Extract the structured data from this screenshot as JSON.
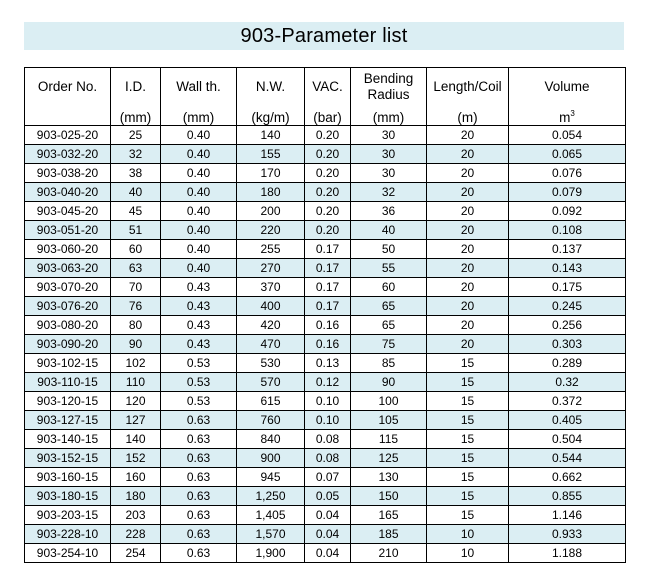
{
  "title": "903-Parameter list",
  "headers": {
    "order_no": "Order No.",
    "id": "I.D.",
    "wall": "Wall th.",
    "nw": "N.W.",
    "vac": "VAC.",
    "bending_1": "Bending",
    "bending_2": "Radius",
    "length": "Length/Coil",
    "volume": "Volume"
  },
  "units": {
    "order_no": "",
    "id": "(mm)",
    "wall": "(mm)",
    "nw": "(kg/m)",
    "vac": "(bar)",
    "bending": "(mm)",
    "length": "(m)",
    "volume_base": "m",
    "volume_exp": "3"
  },
  "rows": [
    [
      "903-025-20",
      "25",
      "0.40",
      "140",
      "0.20",
      "30",
      "20",
      "0.054"
    ],
    [
      "903-032-20",
      "32",
      "0.40",
      "155",
      "0.20",
      "30",
      "20",
      "0.065"
    ],
    [
      "903-038-20",
      "38",
      "0.40",
      "170",
      "0.20",
      "30",
      "20",
      "0.076"
    ],
    [
      "903-040-20",
      "40",
      "0.40",
      "180",
      "0.20",
      "32",
      "20",
      "0.079"
    ],
    [
      "903-045-20",
      "45",
      "0.40",
      "200",
      "0.20",
      "36",
      "20",
      "0.092"
    ],
    [
      "903-051-20",
      "51",
      "0.40",
      "220",
      "0.20",
      "40",
      "20",
      "0.108"
    ],
    [
      "903-060-20",
      "60",
      "0.40",
      "255",
      "0.17",
      "50",
      "20",
      "0.137"
    ],
    [
      "903-063-20",
      "63",
      "0.40",
      "270",
      "0.17",
      "55",
      "20",
      "0.143"
    ],
    [
      "903-070-20",
      "70",
      "0.43",
      "370",
      "0.17",
      "60",
      "20",
      "0.175"
    ],
    [
      "903-076-20",
      "76",
      "0.43",
      "400",
      "0.17",
      "65",
      "20",
      "0.245"
    ],
    [
      "903-080-20",
      "80",
      "0.43",
      "420",
      "0.16",
      "65",
      "20",
      "0.256"
    ],
    [
      "903-090-20",
      "90",
      "0.43",
      "470",
      "0.16",
      "75",
      "20",
      "0.303"
    ],
    [
      "903-102-15",
      "102",
      "0.53",
      "530",
      "0.13",
      "85",
      "15",
      "0.289"
    ],
    [
      "903-110-15",
      "110",
      "0.53",
      "570",
      "0.12",
      "90",
      "15",
      "0.32"
    ],
    [
      "903-120-15",
      "120",
      "0.53",
      "615",
      "0.10",
      "100",
      "15",
      "0.372"
    ],
    [
      "903-127-15",
      "127",
      "0.63",
      "760",
      "0.10",
      "105",
      "15",
      "0.405"
    ],
    [
      "903-140-15",
      "140",
      "0.63",
      "840",
      "0.08",
      "115",
      "15",
      "0.504"
    ],
    [
      "903-152-15",
      "152",
      "0.63",
      "900",
      "0.08",
      "125",
      "15",
      "0.544"
    ],
    [
      "903-160-15",
      "160",
      "0.63",
      "945",
      "0.07",
      "130",
      "15",
      "0.662"
    ],
    [
      "903-180-15",
      "180",
      "0.63",
      "1,250",
      "0.05",
      "150",
      "15",
      "0.855"
    ],
    [
      "903-203-15",
      "203",
      "0.63",
      "1,405",
      "0.04",
      "165",
      "15",
      "1.146"
    ],
    [
      "903-228-10",
      "228",
      "0.63",
      "1,570",
      "0.04",
      "185",
      "10",
      "0.933"
    ],
    [
      "903-254-10",
      "254",
      "0.63",
      "1,900",
      "0.04",
      "210",
      "10",
      "1.188"
    ]
  ]
}
